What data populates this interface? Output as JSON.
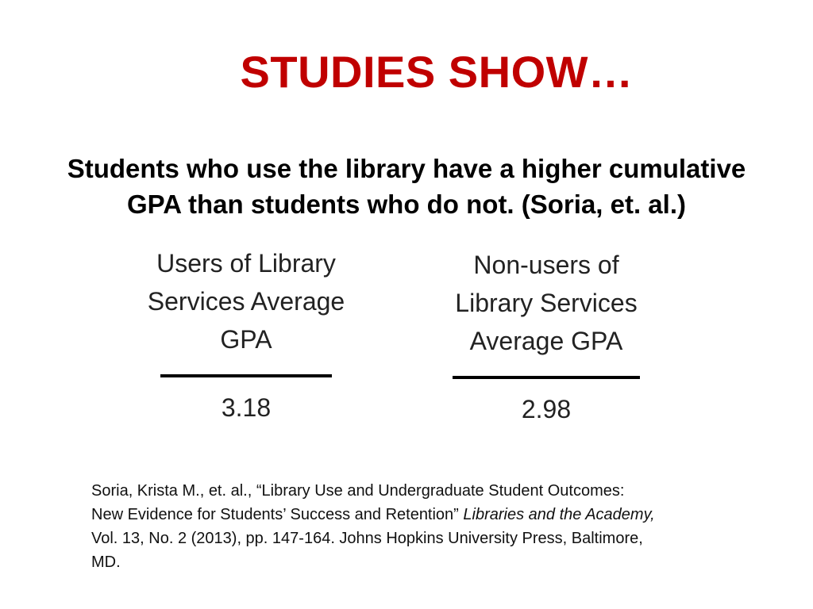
{
  "slide": {
    "title": "STUDIES SHOW…",
    "subtitle_line1": "Students who use the library have a higher cumulative",
    "subtitle_line2": "GPA than students who do not. (Soria, et. al.)",
    "users": {
      "label_line1": "Users of Library",
      "label_line2": "Services Average",
      "label_line3": "GPA",
      "value": "3.18"
    },
    "nonusers": {
      "label_line1": "Non-users of",
      "label_line2": "Library Services",
      "label_line3": "Average GPA",
      "value": "2.98"
    },
    "citation": {
      "line1": "Soria, Krista M., et. al., “Library Use and Undergraduate Student Outcomes:",
      "line2_plain": "New Evidence for Students’ Success and Retention” ",
      "line2_italic": "Libraries and the Academy,",
      "line3": "Vol. 13, No. 2 (2013), pp. 147-164. Johns Hopkins University Press, Baltimore,",
      "line4": "MD."
    },
    "colors": {
      "title": "#c00000",
      "background": "#ffffff",
      "text": "#000000"
    }
  }
}
